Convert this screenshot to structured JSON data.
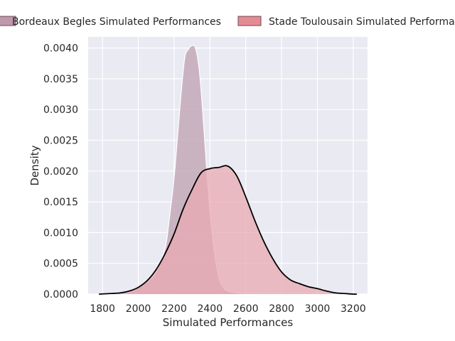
{
  "chart_data": {
    "type": "area",
    "chart_kind": "kde density",
    "xlabel": "Simulated Performances",
    "ylabel": "Density",
    "xlim": [
      1720,
      3280
    ],
    "ylim": [
      0,
      0.00418
    ],
    "x_ticks": [
      1800,
      2000,
      2200,
      2400,
      2600,
      2800,
      3000,
      3200
    ],
    "y_ticks": [
      0.0,
      0.0005,
      0.001,
      0.0015,
      0.002,
      0.0025,
      0.003,
      0.0035,
      0.004
    ],
    "y_tick_labels": [
      "0.0000",
      "0.0005",
      "0.0010",
      "0.0015",
      "0.0020",
      "0.0025",
      "0.0030",
      "0.0035",
      "0.0040"
    ],
    "grid": true,
    "legend_position": "top",
    "background": "#eaeaf2",
    "series": [
      {
        "name": "Bordeaux Begles Simulated Performances",
        "fill": "#c4a9b9",
        "legend_color": "#bf98ab",
        "edge": "#ffffff",
        "x": [
          1790,
          1900,
          1950,
          2000,
          2050,
          2100,
          2150,
          2170,
          2200,
          2220,
          2240,
          2260,
          2280,
          2300,
          2320,
          2340,
          2360,
          2380,
          2400,
          2420,
          2440,
          2460,
          2480,
          2500,
          2550,
          2600,
          2700,
          2800,
          2900,
          3000,
          3200
        ],
        "y": [
          0.0,
          1e-05,
          3e-05,
          0.0001,
          0.0002,
          0.00036,
          0.00075,
          0.00115,
          0.0019,
          0.0026,
          0.0033,
          0.00385,
          0.00398,
          0.00404,
          0.00399,
          0.00365,
          0.00295,
          0.0021,
          0.00135,
          0.0008,
          0.0004,
          0.00018,
          9e-05,
          5e-05,
          2e-05,
          1e-05,
          0.0,
          0.0,
          0.0,
          0.0,
          0.0
        ]
      },
      {
        "name": "Stade Toulousain Simulated Performances",
        "fill": "#e8a9b0",
        "legend_color": "#e68a93",
        "edge": "#000000",
        "x": [
          1780,
          1850,
          1900,
          1950,
          2000,
          2050,
          2100,
          2150,
          2200,
          2250,
          2300,
          2350,
          2400,
          2450,
          2500,
          2550,
          2600,
          2650,
          2700,
          2750,
          2800,
          2850,
          2900,
          2950,
          3000,
          3050,
          3100,
          3150,
          3200,
          3220
        ],
        "y": [
          0.0,
          1e-05,
          2e-05,
          5e-05,
          0.00011,
          0.00022,
          0.0004,
          0.00066,
          0.00098,
          0.00138,
          0.0017,
          0.00197,
          0.00204,
          0.00206,
          0.00208,
          0.00192,
          0.00158,
          0.0012,
          0.00086,
          0.00058,
          0.00036,
          0.00023,
          0.00017,
          0.00012,
          9e-05,
          5e-05,
          2e-05,
          1e-05,
          0.0,
          0.0
        ]
      }
    ]
  }
}
